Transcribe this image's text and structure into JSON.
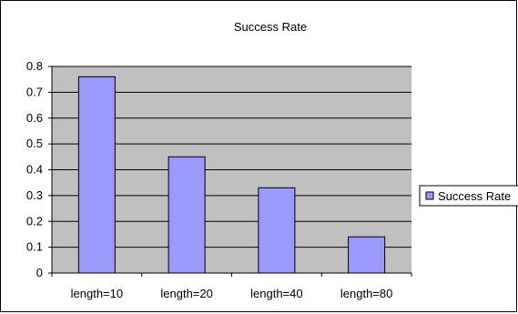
{
  "chart_data": {
    "type": "bar",
    "title": "Success Rate",
    "categories": [
      "length=10",
      "length=20",
      "length=40",
      "length=80"
    ],
    "series": [
      {
        "name": "Success Rate",
        "values": [
          0.76,
          0.45,
          0.33,
          0.14
        ]
      }
    ],
    "xlabel": "",
    "ylabel": "",
    "ylim": [
      0,
      0.8
    ],
    "yticks": [
      "0",
      "0.1",
      "0.2",
      "0.3",
      "0.4",
      "0.5",
      "0.6",
      "0.7",
      "0.8"
    ],
    "grid": true,
    "legend_position": "right",
    "colors": {
      "plot_background": "#c0c0c0",
      "bar_fill": "#9999ff",
      "bar_stroke": "#000000",
      "gridline": "#000000"
    }
  }
}
